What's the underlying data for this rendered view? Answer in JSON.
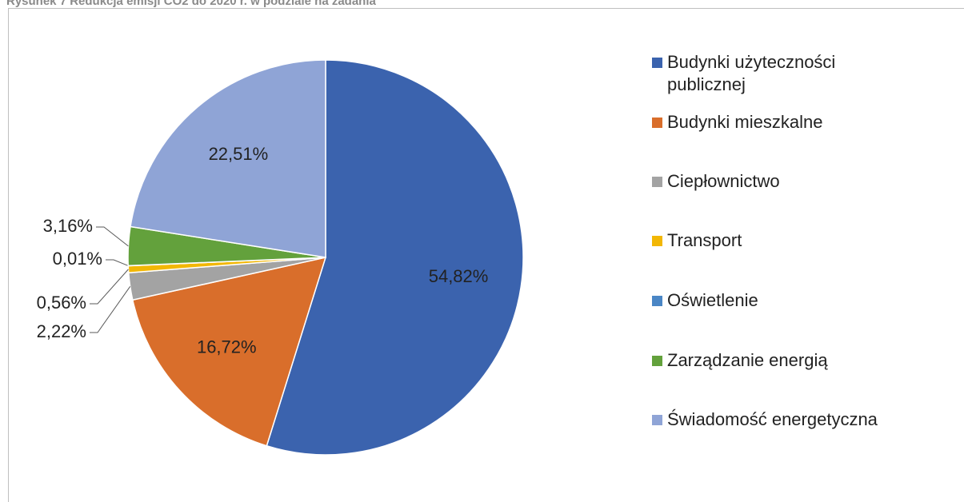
{
  "chart_data": {
    "type": "pie",
    "title": "Rysunek 7 Redukcja emisji CO2 do 2020 r. w podziale na zadania",
    "categories": [
      "Budynki użyteczności publicznej",
      "Budynki mieszkalne",
      "Ciepłownictwo",
      "Transport",
      "Oświetlenie",
      "Zarządzanie energią",
      "Świadomość energetyczna"
    ],
    "values": [
      54.82,
      16.72,
      2.22,
      0.56,
      0.01,
      3.16,
      22.51
    ],
    "value_labels": [
      "54,82%",
      "16,72%",
      "2,22%",
      "0,56%",
      "0,01%",
      "3,16%",
      "22,51%"
    ],
    "colors": [
      "#3b63ae",
      "#d96e2b",
      "#a3a3a3",
      "#f2b705",
      "#4a86c5",
      "#63a13c",
      "#8fa4d6"
    ],
    "legend": "right"
  }
}
